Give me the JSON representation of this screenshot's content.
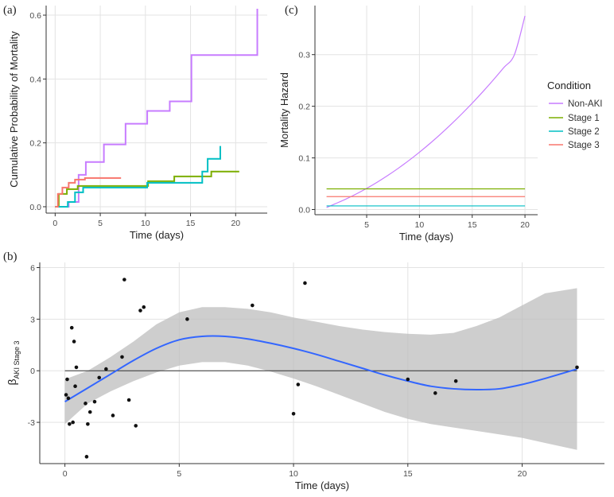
{
  "colors": {
    "non_aki": "#c77cff",
    "stage1": "#7cae00",
    "stage2": "#00bfc4",
    "stage3": "#f8766d",
    "smooth": "#3366ff",
    "band": "#bdbdbd",
    "point": "#111111"
  },
  "chart_data": [
    {
      "panel": "(a)",
      "type": "line",
      "step": true,
      "xlabel": "Time (days)",
      "ylabel": "Cumulative Probability of Mortality",
      "xlim": [
        -1,
        23.5
      ],
      "ylim": [
        -0.02,
        0.63
      ],
      "xticks": [
        "0",
        "5",
        "10",
        "15",
        "20"
      ],
      "yticks": [
        "0.0",
        "0.2",
        "0.4",
        "0.6"
      ],
      "xtick_values": [
        0,
        5,
        10,
        15,
        20
      ],
      "ytick_values": [
        0,
        0.2,
        0.4,
        0.6
      ],
      "series": [
        {
          "name": "Non-AKI",
          "color": "#c77cff",
          "x": [
            0,
            1.5,
            2.6,
            2.6,
            3.4,
            5.4,
            7.8,
            10.2,
            12.7,
            15.1,
            22.4,
            22.4
          ],
          "y": [
            0,
            0.015,
            0.05,
            0.1,
            0.14,
            0.195,
            0.26,
            0.3,
            0.33,
            0.475,
            0.475,
            0.62
          ]
        },
        {
          "name": "Stage 1",
          "color": "#7cae00",
          "x": [
            0,
            0.4,
            1.3,
            2.5,
            10.3,
            13.2,
            17.3,
            20.4
          ],
          "y": [
            0,
            0.04,
            0.055,
            0.065,
            0.08,
            0.095,
            0.11,
            0.11
          ]
        },
        {
          "name": "Stage 2",
          "color": "#00bfc4",
          "x": [
            0,
            1.4,
            2.2,
            3.1,
            10.2,
            16.3,
            16.9,
            18.3
          ],
          "y": [
            0,
            0.015,
            0.045,
            0.06,
            0.075,
            0.11,
            0.15,
            0.19
          ]
        },
        {
          "name": "Stage 3",
          "color": "#f8766d",
          "x": [
            0,
            0.3,
            0.8,
            1.5,
            2.2,
            3.3,
            7.3
          ],
          "y": [
            0,
            0.04,
            0.06,
            0.075,
            0.085,
            0.09,
            0.09
          ]
        }
      ]
    },
    {
      "panel": "(c)",
      "type": "line",
      "xlabel": "Time (days)",
      "ylabel": "Mortality Hazard",
      "xlim": [
        0.1,
        21.2
      ],
      "ylim": [
        -0.01,
        0.395
      ],
      "xticks": [
        "5",
        "10",
        "15",
        "20"
      ],
      "yticks": [
        "0.0",
        "0.1",
        "0.2",
        "0.3"
      ],
      "xtick_values": [
        5,
        10,
        15,
        20
      ],
      "ytick_values": [
        0,
        0.1,
        0.2,
        0.3
      ],
      "legend": {
        "title": "Condition",
        "position": "right",
        "items": [
          "Non-AKI",
          "Stage 1",
          "Stage 2",
          "Stage 3"
        ]
      },
      "series": [
        {
          "name": "Non-AKI",
          "color": "#c77cff",
          "x": [
            1.2,
            2,
            3,
            4,
            5,
            6,
            7,
            8,
            9,
            10,
            11,
            12,
            13,
            14,
            15,
            16,
            17,
            18,
            19,
            20
          ],
          "y": [
            0.004,
            0.011,
            0.02,
            0.03,
            0.041,
            0.053,
            0.066,
            0.08,
            0.095,
            0.111,
            0.128,
            0.146,
            0.165,
            0.185,
            0.206,
            0.228,
            0.251,
            0.275,
            0.3,
            0.375
          ]
        },
        {
          "name": "Stage 1",
          "color": "#7cae00",
          "x": [
            1.2,
            20
          ],
          "y": [
            0.04,
            0.04
          ]
        },
        {
          "name": "Stage 2",
          "color": "#00bfc4",
          "x": [
            1.2,
            20
          ],
          "y": [
            0.007,
            0.007
          ]
        },
        {
          "name": "Stage 3",
          "color": "#f8766d",
          "x": [
            1.2,
            20
          ],
          "y": [
            0.025,
            0.025
          ]
        }
      ]
    },
    {
      "panel": "(b)",
      "type": "scatter",
      "xlabel": "Time (days)",
      "ylabel_main": "β",
      "ylabel_sub": "AKI Stage 3",
      "xlim": [
        -1.1,
        23.6
      ],
      "ylim": [
        -5.4,
        6.3
      ],
      "xticks": [
        "0",
        "5",
        "10",
        "15",
        "20"
      ],
      "yticks": [
        "-3",
        "0",
        "3",
        "6"
      ],
      "xtick_values": [
        0,
        5,
        10,
        15,
        20
      ],
      "ytick_values": [
        -3,
        0,
        3,
        6
      ],
      "hline": 0,
      "points": [
        [
          0.05,
          -1.4
        ],
        [
          0.1,
          -0.5
        ],
        [
          0.15,
          -1.6
        ],
        [
          0.2,
          -3.1
        ],
        [
          0.3,
          2.5
        ],
        [
          0.35,
          -3.0
        ],
        [
          0.4,
          1.7
        ],
        [
          0.45,
          -0.9
        ],
        [
          0.5,
          0.2
        ],
        [
          0.9,
          -1.9
        ],
        [
          0.95,
          -5.0
        ],
        [
          1.0,
          -3.1
        ],
        [
          1.1,
          -2.4
        ],
        [
          1.3,
          -1.8
        ],
        [
          1.5,
          -0.4
        ],
        [
          1.8,
          0.1
        ],
        [
          2.1,
          -2.6
        ],
        [
          2.5,
          0.8
        ],
        [
          2.6,
          5.3
        ],
        [
          2.8,
          -1.7
        ],
        [
          3.1,
          -3.2
        ],
        [
          3.3,
          3.5
        ],
        [
          3.45,
          3.7
        ],
        [
          5.35,
          3.0
        ],
        [
          8.2,
          3.8
        ],
        [
          10.0,
          -2.5
        ],
        [
          10.2,
          -0.8
        ],
        [
          10.5,
          5.1
        ],
        [
          15.0,
          -0.5
        ],
        [
          16.2,
          -1.3
        ],
        [
          17.1,
          -0.6
        ],
        [
          22.4,
          0.2
        ]
      ],
      "smooth": {
        "x": [
          0,
          1,
          2,
          3,
          4,
          5,
          6,
          7,
          8,
          9,
          10,
          11,
          12,
          13,
          14,
          15,
          16,
          17,
          18,
          19,
          20,
          21,
          22.4
        ],
        "y": [
          -1.8,
          -1.0,
          -0.2,
          0.6,
          1.3,
          1.8,
          2.0,
          2.0,
          1.85,
          1.6,
          1.3,
          0.95,
          0.55,
          0.15,
          -0.25,
          -0.6,
          -0.9,
          -1.05,
          -1.1,
          -1.05,
          -0.8,
          -0.45,
          0.1
        ],
        "lower": [
          -3.1,
          -1.9,
          -1.2,
          -0.6,
          -0.1,
          0.3,
          0.5,
          0.5,
          0.3,
          -0.05,
          -0.45,
          -0.9,
          -1.4,
          -1.9,
          -2.4,
          -2.8,
          -3.1,
          -3.3,
          -3.5,
          -3.7,
          -3.9,
          -4.2,
          -4.6
        ],
        "upper": [
          -0.5,
          0.0,
          0.8,
          1.7,
          2.7,
          3.4,
          3.7,
          3.7,
          3.6,
          3.4,
          3.1,
          2.85,
          2.6,
          2.4,
          2.25,
          2.15,
          2.1,
          2.2,
          2.6,
          3.1,
          3.8,
          4.5,
          4.8
        ]
      }
    }
  ]
}
